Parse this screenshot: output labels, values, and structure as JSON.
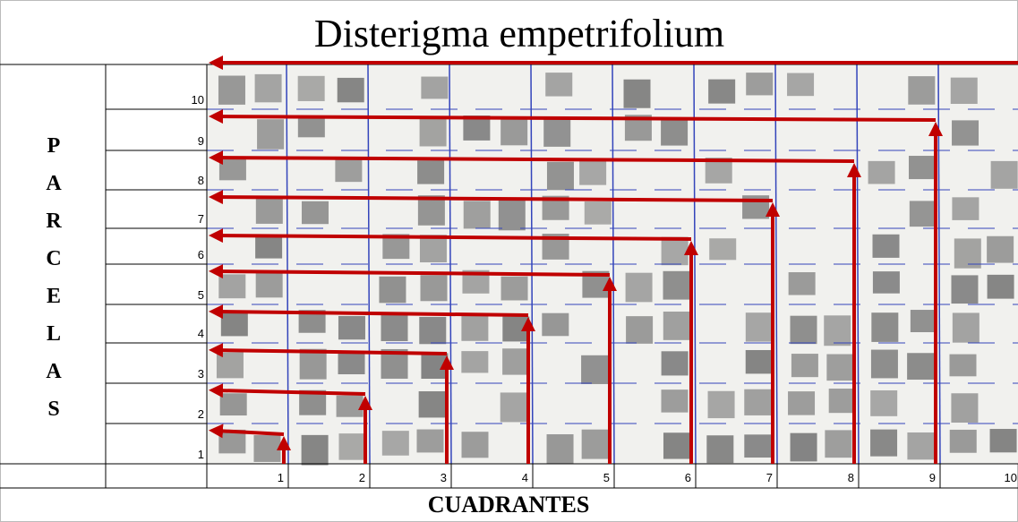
{
  "title": "Disterigma empetrifolium",
  "side_label": [
    "P",
    "A",
    "R",
    "C",
    "E",
    "L",
    "A",
    "S"
  ],
  "rows": [
    1,
    2,
    3,
    4,
    5,
    6,
    7,
    8,
    9,
    10
  ],
  "columns": [
    1,
    2,
    3,
    4,
    5,
    6,
    7,
    8,
    9,
    10
  ],
  "bottom_label": "CUADRANTES"
}
